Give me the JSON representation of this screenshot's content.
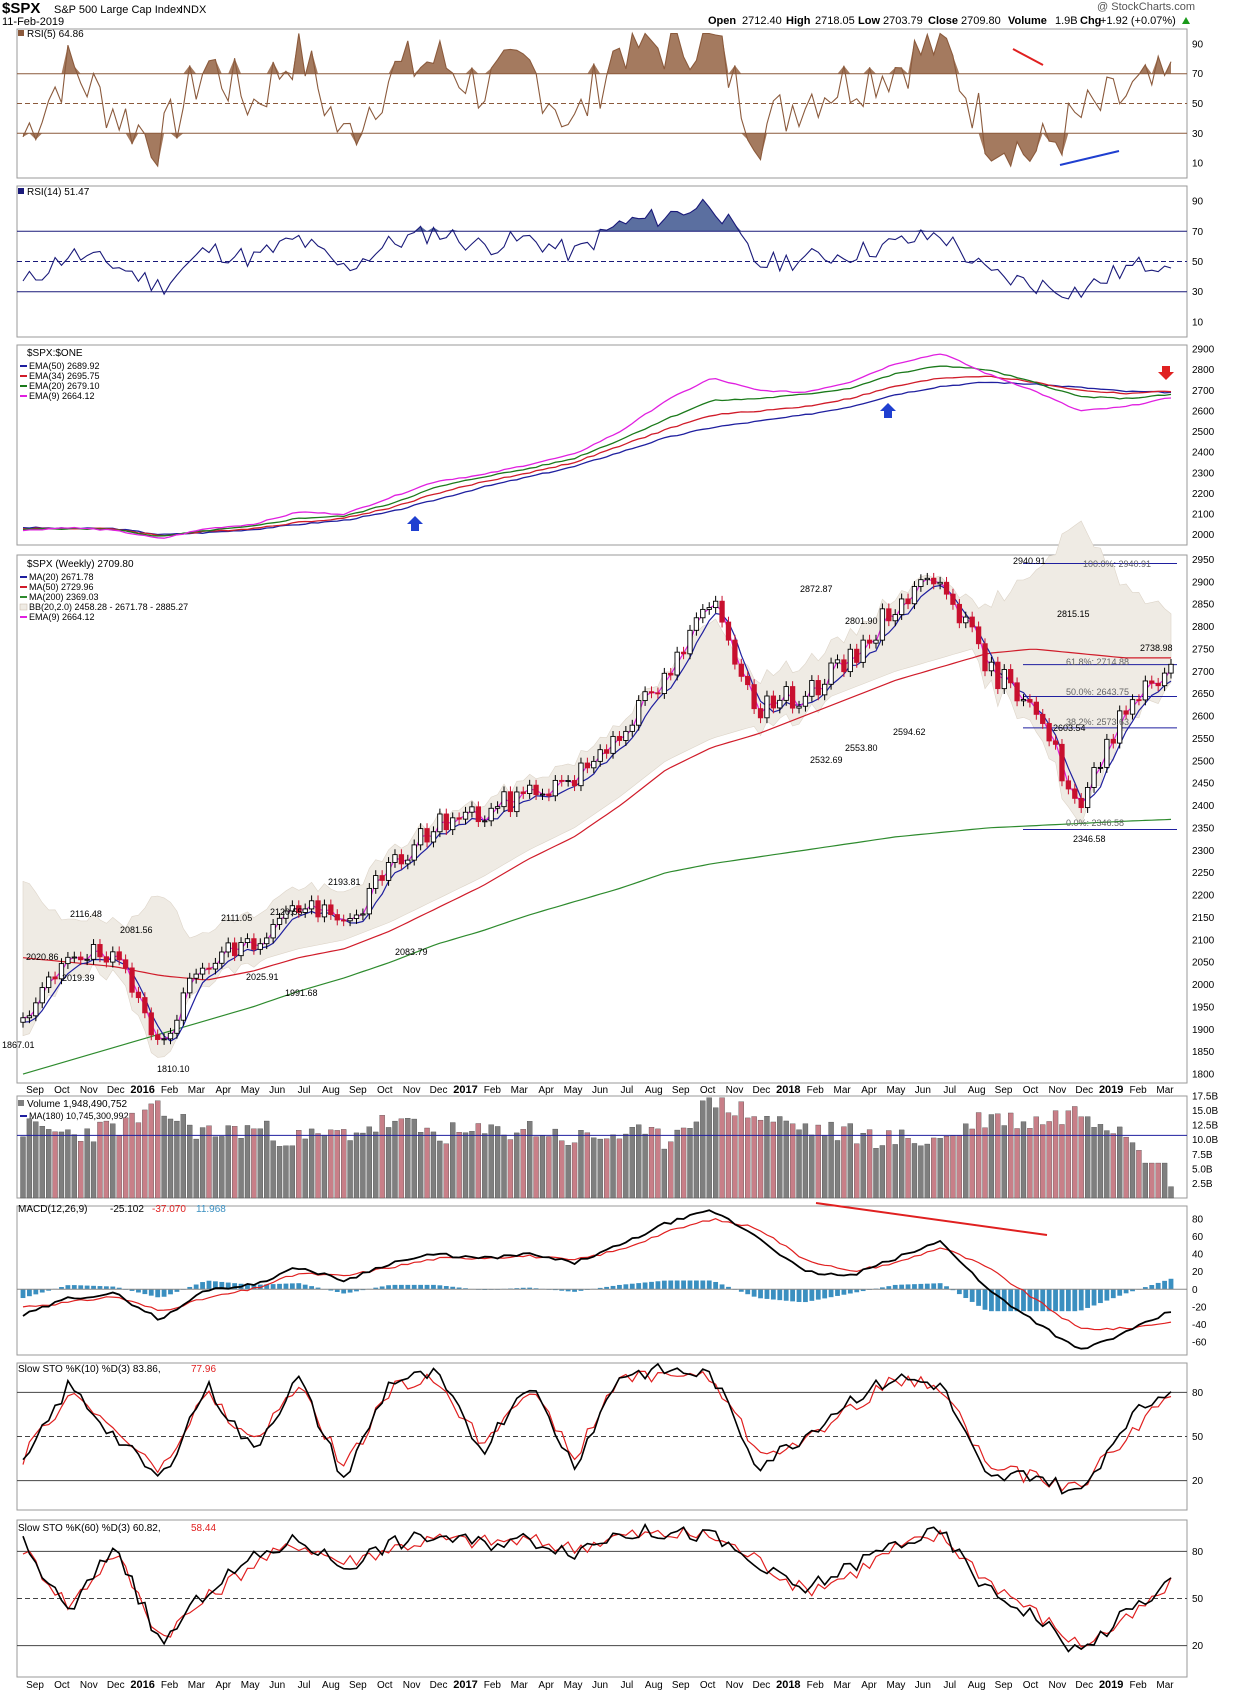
{
  "header": {
    "symbol": "$SPX",
    "name": "S&P 500 Large Cap Index",
    "exchange": "INDX",
    "date": "11-Feb-2019",
    "brand": "@ StockCharts.com",
    "quote": {
      "open_label": "Open",
      "open": "2712.40",
      "high_label": "High",
      "high": "2718.05",
      "low_label": "Low",
      "low": "2703.79",
      "close_label": "Close",
      "close": "2709.80",
      "volume_label": "Volume",
      "volume": "1.9B",
      "chg_label": "Chg",
      "chg": "+1.92 (+0.07%)"
    }
  },
  "colors": {
    "rsi5": "#8B5A3C",
    "rsi5_fill": "#9A6B4E",
    "rsi14": "#1a1a7a",
    "rsi14_fill": "#5B6FA0",
    "ema50": "#1f1f9f",
    "ema34": "#d01c2a",
    "ema20": "#1b7a1b",
    "ema9": "#e020e0",
    "ma200": "#2e8b2e",
    "bb_fill": "#efebe4",
    "up_candle": "#000000",
    "down_candle": "#c8102e",
    "vol_up": "#7f7f7f",
    "vol_down": "#c87f88",
    "macd": "#000000",
    "signal": "#e02020",
    "hist": "#3a8fc0",
    "sto_k": "#000000",
    "sto_d": "#e02020"
  },
  "panels": {
    "rsi5": {
      "label": "RSI(5) 64.86",
      "ticks": [
        "90",
        "70",
        "50",
        "30",
        "10"
      ]
    },
    "rsi14": {
      "label": "RSI(14) 51.47",
      "ticks": [
        "90",
        "70",
        "50",
        "30",
        "10"
      ]
    },
    "ema": {
      "title": "$SPX:$ONE",
      "legend": [
        "EMA(50) 2689.92",
        "EMA(34) 2695.75",
        "EMA(20) 2679.10",
        "EMA(9) 2664.12"
      ],
      "ticks": [
        "2900",
        "2800",
        "2700",
        "2600",
        "2500",
        "2400",
        "2300",
        "2200",
        "2100",
        "2000"
      ]
    },
    "price": {
      "title": "$SPX (Weekly) 2709.80",
      "legend": [
        "MA(20) 2671.78",
        "MA(50) 2729.96",
        "MA(200) 2369.03",
        "BB(20,2.0) 2458.28 - 2671.78 - 2885.27",
        "EMA(9) 2664.12"
      ],
      "ticks": [
        "2950",
        "2900",
        "2850",
        "2800",
        "2750",
        "2700",
        "2650",
        "2600",
        "2550",
        "2500",
        "2450",
        "2400",
        "2350",
        "2300",
        "2250",
        "2200",
        "2150",
        "2100",
        "2050",
        "2000",
        "1950",
        "1900",
        "1850",
        "1800"
      ],
      "annotations": [
        "2940.91",
        "2872.87",
        "2801.90",
        "2815.15",
        "2738.98",
        "2532.69",
        "2553.80",
        "2594.62",
        "2603.54",
        "2346.58",
        "2193.81",
        "2116.48",
        "2081.56",
        "2111.05",
        "2120.55",
        "2020.86",
        "2019.39",
        "2025.91",
        "1991.68",
        "2083.79",
        "1867.01",
        "1810.10"
      ],
      "fib": [
        "100.0%: 2940.91",
        "61.8%: 2714.88",
        "50.0%: 2643.75",
        "38.2%: 2573.63",
        "0.0%: 2346.58"
      ]
    },
    "volume": {
      "label": "Volume 1,948,490,752",
      "ma": "MA(180) 10,745,300,992",
      "ticks": [
        "17.5B",
        "15.0B",
        "12.5B",
        "10.0B",
        "7.5B",
        "5.0B",
        "2.5B"
      ]
    },
    "macd": {
      "label": "MACD(12,26,9)",
      "v1": "-25.102",
      "v2": "-37.070",
      "v3": "11.968",
      "ticks": [
        "80",
        "60",
        "40",
        "20",
        "0",
        "-20",
        "-40",
        "-60"
      ]
    },
    "sto10": {
      "label": "Slow STO %K(10) %D(3) 83.86,",
      "d": "77.96",
      "ticks": [
        "80",
        "50",
        "20"
      ]
    },
    "sto60": {
      "label": "Slow STO %K(60) %D(3) 60.82,",
      "d": "58.44",
      "ticks": [
        "80",
        "50",
        "20"
      ]
    }
  },
  "x_axis": {
    "labels": [
      "Sep",
      "Oct",
      "Nov",
      "Dec",
      "2016",
      "Feb",
      "Mar",
      "Apr",
      "May",
      "Jun",
      "Jul",
      "Aug",
      "Sep",
      "Oct",
      "Nov",
      "Dec",
      "2017",
      "Feb",
      "Mar",
      "Apr",
      "May",
      "Jun",
      "Jul",
      "Aug",
      "Sep",
      "Oct",
      "Nov",
      "Dec",
      "2018",
      "Feb",
      "Mar",
      "Apr",
      "May",
      "Jun",
      "Jul",
      "Aug",
      "Sep",
      "Oct",
      "Nov",
      "Dec",
      "2019",
      "Feb",
      "Mar"
    ]
  },
  "chart_data": [
    {
      "type": "line",
      "title": "RSI(5)",
      "ylim": [
        0,
        100
      ],
      "x": [
        "2015-08",
        "2015-10",
        "2015-12",
        "2016-02",
        "2016-04",
        "2016-06",
        "2016-08",
        "2016-10",
        "2016-12",
        "2017-02",
        "2017-04",
        "2017-06",
        "2017-08",
        "2017-10",
        "2017-12",
        "2018-01",
        "2018-02",
        "2018-04",
        "2018-06",
        "2018-08",
        "2018-09",
        "2018-10",
        "2018-11",
        "2018-12",
        "2019-01",
        "2019-02"
      ],
      "series": [
        {
          "name": "RSI(5)",
          "values": [
            28,
            75,
            45,
            22,
            78,
            50,
            88,
            25,
            70,
            80,
            60,
            75,
            35,
            90,
            88,
            95,
            30,
            55,
            65,
            75,
            92,
            30,
            15,
            40,
            55,
            64.86
          ]
        }
      ]
    },
    {
      "type": "line",
      "title": "RSI(14)",
      "ylim": [
        0,
        100
      ],
      "x": [
        "2015-08",
        "2015-10",
        "2015-12",
        "2016-02",
        "2016-04",
        "2016-06",
        "2016-08",
        "2016-10",
        "2016-12",
        "2017-02",
        "2017-04",
        "2017-06",
        "2017-08",
        "2017-10",
        "2017-12",
        "2018-01",
        "2018-02",
        "2018-04",
        "2018-06",
        "2018-08",
        "2018-09",
        "2018-10",
        "2018-11",
        "2018-12",
        "2019-01",
        "2019-02"
      ],
      "series": [
        {
          "name": "RSI(14)",
          "values": [
            35,
            55,
            48,
            33,
            58,
            52,
            65,
            45,
            62,
            70,
            60,
            65,
            55,
            75,
            80,
            90,
            48,
            52,
            55,
            62,
            68,
            42,
            35,
            30,
            45,
            51.47
          ]
        }
      ]
    },
    {
      "type": "line",
      "title": "$SPX:$ONE",
      "ylim": [
        1950,
        2920
      ],
      "x": [
        "2015-08",
        "2015-10",
        "2015-12",
        "2016-02",
        "2016-04",
        "2016-06",
        "2016-08",
        "2016-10",
        "2016-12",
        "2017-02",
        "2017-04",
        "2017-06",
        "2017-08",
        "2017-10",
        "2017-12",
        "2018-01",
        "2018-02",
        "2018-04",
        "2018-06",
        "2018-08",
        "2018-09",
        "2018-10",
        "2018-11",
        "2018-12",
        "2019-01",
        "2019-02"
      ],
      "series": [
        {
          "name": "EMA(50)",
          "values": [
            2035,
            2030,
            2030,
            2000,
            2010,
            2025,
            2050,
            2070,
            2110,
            2170,
            2230,
            2280,
            2330,
            2400,
            2470,
            2520,
            2550,
            2580,
            2620,
            2680,
            2720,
            2740,
            2730,
            2715,
            2695,
            2689.92
          ]
        },
        {
          "name": "EMA(34)",
          "values": [
            2030,
            2030,
            2028,
            1995,
            2015,
            2030,
            2060,
            2080,
            2130,
            2200,
            2255,
            2300,
            2350,
            2430,
            2510,
            2580,
            2600,
            2620,
            2660,
            2720,
            2760,
            2770,
            2740,
            2700,
            2685,
            2695.75
          ]
        },
        {
          "name": "EMA(20)",
          "values": [
            2025,
            2030,
            2025,
            1990,
            2020,
            2040,
            2080,
            2090,
            2150,
            2230,
            2280,
            2320,
            2370,
            2460,
            2560,
            2650,
            2660,
            2680,
            2710,
            2780,
            2820,
            2800,
            2740,
            2670,
            2660,
            2679.1
          ]
        },
        {
          "name": "EMA(9)",
          "values": [
            2020,
            2035,
            2020,
            1980,
            2030,
            2050,
            2110,
            2100,
            2180,
            2260,
            2290,
            2340,
            2390,
            2500,
            2650,
            2760,
            2700,
            2690,
            2740,
            2830,
            2880,
            2780,
            2700,
            2600,
            2620,
            2664.12
          ]
        }
      ]
    },
    {
      "type": "line",
      "title": "$SPX (Weekly) 2709.80",
      "ylim": [
        1780,
        2960
      ],
      "x": [
        "2015-08",
        "2015-10",
        "2015-12",
        "2016-02",
        "2016-04",
        "2016-06",
        "2016-08",
        "2016-10",
        "2016-12",
        "2017-02",
        "2017-04",
        "2017-06",
        "2017-08",
        "2017-10",
        "2017-12",
        "2018-01",
        "2018-02",
        "2018-04",
        "2018-06",
        "2018-08",
        "2018-09",
        "2018-10",
        "2018-11",
        "2018-12",
        "2019-01",
        "2019-02"
      ],
      "series": [
        {
          "name": "Close",
          "values": [
            1900,
            2080,
            2050,
            1880,
            2060,
            2090,
            2180,
            2130,
            2260,
            2360,
            2380,
            2430,
            2460,
            2570,
            2680,
            2860,
            2620,
            2650,
            2720,
            2850,
            2920,
            2700,
            2640,
            2380,
            2630,
            2709.8
          ]
        },
        {
          "name": "MA(200)",
          "values": [
            1800,
            1830,
            1860,
            1890,
            1920,
            1950,
            1985,
            2015,
            2050,
            2090,
            2120,
            2155,
            2185,
            2215,
            2250,
            2270,
            2285,
            2300,
            2315,
            2330,
            2340,
            2350,
            2355,
            2360,
            2365,
            2369.03
          ]
        },
        {
          "name": "MA(50)",
          "values": [
            2060,
            2050,
            2040,
            2020,
            2010,
            2030,
            2060,
            2080,
            2120,
            2170,
            2220,
            2280,
            2330,
            2400,
            2480,
            2530,
            2560,
            2600,
            2640,
            2680,
            2710,
            2740,
            2750,
            2740,
            2730,
            2729.96
          ]
        }
      ]
    },
    {
      "type": "bar",
      "title": "Volume",
      "ylim": [
        0,
        17.5
      ],
      "x": [
        "2015-08",
        "2015-10",
        "2015-12",
        "2016-02",
        "2016-04",
        "2016-06",
        "2016-08",
        "2016-10",
        "2016-12",
        "2017-02",
        "2017-04",
        "2017-06",
        "2017-08",
        "2017-10",
        "2017-12",
        "2018-01",
        "2018-02",
        "2018-04",
        "2018-06",
        "2018-08",
        "2018-09",
        "2018-10",
        "2018-11",
        "2018-12",
        "2019-01",
        "2019-02"
      ],
      "series": [
        {
          "name": "Volume (B)",
          "values": [
            12,
            11,
            12,
            15,
            11,
            12,
            10,
            11,
            13,
            11,
            11,
            12,
            10,
            11,
            10,
            17,
            14,
            12,
            11,
            10,
            10,
            14,
            13,
            15,
            12,
            1.95
          ]
        }
      ]
    },
    {
      "type": "line",
      "title": "MACD(12,26,9)",
      "ylim": [
        -75,
        95
      ],
      "x": [
        "2015-08",
        "2015-10",
        "2015-12",
        "2016-02",
        "2016-04",
        "2016-06",
        "2016-08",
        "2016-10",
        "2016-12",
        "2017-02",
        "2017-04",
        "2017-06",
        "2017-08",
        "2017-10",
        "2017-12",
        "2018-01",
        "2018-02",
        "2018-04",
        "2018-06",
        "2018-08",
        "2018-09",
        "2018-10",
        "2018-11",
        "2018-12",
        "2019-01",
        "2019-02"
      ],
      "series": [
        {
          "name": "MACD",
          "values": [
            -30,
            -10,
            -5,
            -35,
            0,
            5,
            25,
            10,
            30,
            40,
            35,
            40,
            30,
            50,
            75,
            90,
            60,
            20,
            15,
            35,
            55,
            0,
            -35,
            -70,
            -50,
            -25.102
          ]
        },
        {
          "name": "Signal",
          "values": [
            -20,
            -15,
            -8,
            -25,
            -10,
            0,
            18,
            15,
            25,
            35,
            36,
            38,
            33,
            45,
            65,
            80,
            70,
            35,
            20,
            30,
            48,
            25,
            -10,
            -45,
            -45,
            -37.07
          ]
        },
        {
          "name": "Histogram",
          "values": [
            -10,
            5,
            3,
            -10,
            10,
            5,
            7,
            -5,
            5,
            5,
            -1,
            2,
            -3,
            5,
            10,
            10,
            -10,
            -15,
            -5,
            5,
            7,
            -25,
            -25,
            -25,
            -5,
            11.968
          ]
        }
      ]
    },
    {
      "type": "line",
      "title": "Slow STO %K(10) %D(3)",
      "ylim": [
        0,
        100
      ],
      "x": [
        "2015-08",
        "2015-10",
        "2015-12",
        "2016-02",
        "2016-04",
        "2016-06",
        "2016-08",
        "2016-10",
        "2016-12",
        "2017-02",
        "2017-04",
        "2017-06",
        "2017-08",
        "2017-10",
        "2017-12",
        "2018-01",
        "2018-02",
        "2018-04",
        "2018-06",
        "2018-08",
        "2018-09",
        "2018-10",
        "2018-11",
        "2018-12",
        "2019-01",
        "2019-02"
      ],
      "series": [
        {
          "name": "%K",
          "values": [
            30,
            85,
            50,
            20,
            85,
            40,
            90,
            20,
            88,
            92,
            40,
            88,
            30,
            92,
            95,
            92,
            30,
            50,
            75,
            90,
            85,
            20,
            25,
            10,
            60,
            83.86
          ]
        },
        {
          "name": "%D",
          "values": [
            35,
            80,
            55,
            25,
            80,
            45,
            85,
            28,
            82,
            90,
            45,
            85,
            35,
            90,
            93,
            90,
            40,
            45,
            70,
            88,
            85,
            30,
            22,
            15,
            50,
            77.96
          ]
        }
      ]
    },
    {
      "type": "line",
      "title": "Slow STO %K(60) %D(3)",
      "ylim": [
        0,
        100
      ],
      "x": [
        "2015-08",
        "2015-10",
        "2015-12",
        "2016-02",
        "2016-04",
        "2016-06",
        "2016-08",
        "2016-10",
        "2016-12",
        "2017-02",
        "2017-04",
        "2017-06",
        "2017-08",
        "2017-10",
        "2017-12",
        "2018-01",
        "2018-02",
        "2018-04",
        "2018-06",
        "2018-08",
        "2018-09",
        "2018-10",
        "2018-11",
        "2018-12",
        "2019-01",
        "2019-02"
      ],
      "series": [
        {
          "name": "%K",
          "values": [
            85,
            40,
            85,
            20,
            55,
            75,
            88,
            70,
            85,
            90,
            85,
            88,
            80,
            92,
            92,
            90,
            70,
            55,
            70,
            85,
            92,
            55,
            40,
            15,
            40,
            60.82
          ]
        },
        {
          "name": "%D",
          "values": [
            82,
            45,
            80,
            25,
            50,
            72,
            85,
            73,
            82,
            88,
            86,
            87,
            82,
            90,
            91,
            90,
            75,
            55,
            65,
            82,
            90,
            62,
            42,
            20,
            35,
            58.44
          ]
        }
      ]
    }
  ]
}
